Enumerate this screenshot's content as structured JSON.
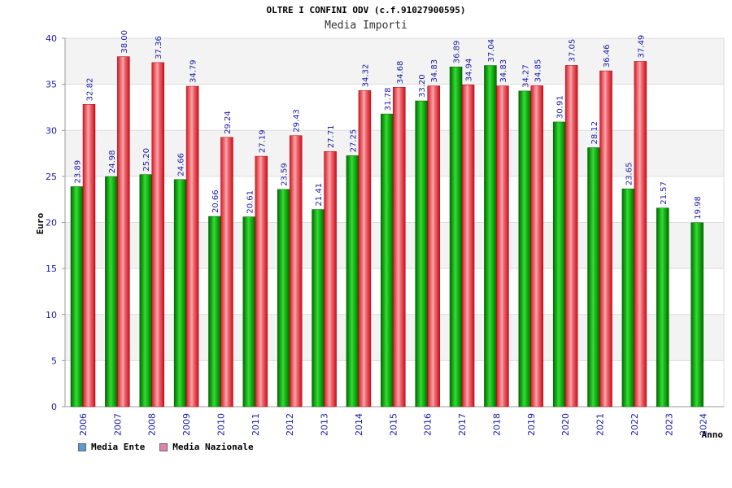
{
  "chart_data": {
    "type": "bar",
    "title": "OLTRE I CONFINI ODV (c.f.91027900595)",
    "subtitle": "Media Importi",
    "ylabel": "Euro",
    "xlabel": "Anno",
    "ylim": [
      0,
      40
    ],
    "yticks": [
      0,
      5,
      10,
      15,
      20,
      25,
      30,
      35,
      40
    ],
    "grid": true,
    "legend_position": "bottom-left",
    "categories": [
      "2006",
      "2007",
      "2008",
      "2009",
      "2010",
      "2011",
      "2012",
      "2013",
      "2014",
      "2015",
      "2016",
      "2017",
      "2018",
      "2019",
      "2020",
      "2021",
      "2022",
      "2023",
      "2024"
    ],
    "series": [
      {
        "name": "Media Ente",
        "color": "#00b000",
        "legend_color": "#5b9bd5",
        "values": [
          23.89,
          24.98,
          25.2,
          24.66,
          20.66,
          20.61,
          23.59,
          21.41,
          27.25,
          31.78,
          33.2,
          36.89,
          37.04,
          34.27,
          30.91,
          28.12,
          23.65,
          21.57,
          19.98
        ],
        "labels": [
          "23.89",
          "24.98",
          "25.20",
          "24.66",
          "20.66",
          "20.61",
          "23.59",
          "21.41",
          "27.25",
          "31.78",
          "33.20",
          "36.89",
          "37.04",
          "34.27",
          "30.91",
          "28.12",
          "23.65",
          "21.57",
          "19.98"
        ]
      },
      {
        "name": "Media Nazionale",
        "color": "#e8202a",
        "legend_color": "#e07fb0",
        "values": [
          32.82,
          38.0,
          37.36,
          34.79,
          29.24,
          27.19,
          29.43,
          27.71,
          34.32,
          34.68,
          34.83,
          34.94,
          34.83,
          34.85,
          37.05,
          36.46,
          37.49,
          null,
          null
        ],
        "labels": [
          "32.82",
          "38.00",
          "37.36",
          "34.79",
          "29.24",
          "27.19",
          "29.43",
          "27.71",
          "34.32",
          "34.68",
          "34.83",
          "34.94",
          "34.83",
          "34.85",
          "37.05",
          "36.46",
          "37.49",
          null,
          null
        ]
      }
    ]
  }
}
